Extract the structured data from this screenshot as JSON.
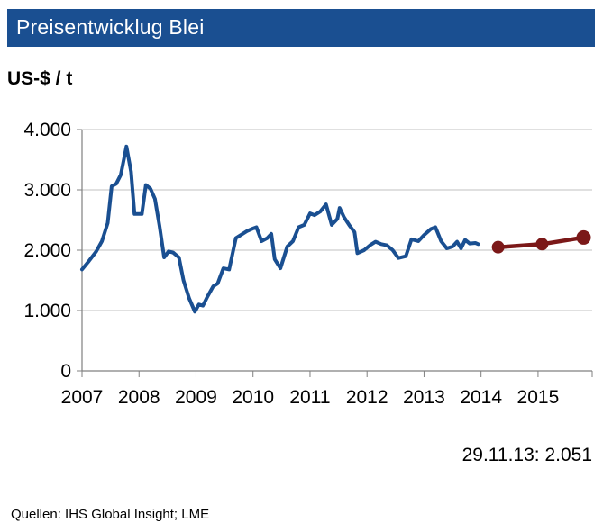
{
  "header": {
    "title": "Preisentwicklug Blei"
  },
  "unit_label": "US-$ / t",
  "current_value": "29.11.13: 2.051",
  "source": "Quellen:  IHS Global Insight; LME",
  "colors": {
    "title_bg": "#1a4f91",
    "history": "#1a4f91",
    "forecast": "#7b1818",
    "grid": "#c0c0c0"
  },
  "chart_data": {
    "type": "line",
    "title": "Preisentwicklug Blei",
    "ylabel": "US-$ / t",
    "xlabel": "",
    "xlim": [
      2007,
      2015.95
    ],
    "ylim": [
      0,
      4000
    ],
    "y_ticks": [
      0,
      1000,
      2000,
      3000,
      4000
    ],
    "y_tick_labels": [
      "0",
      "1.000",
      "2.000",
      "3.000",
      "4.000"
    ],
    "x_ticks": [
      2007,
      2008,
      2009,
      2010,
      2011,
      2012,
      2013,
      2014,
      2015
    ],
    "x_tick_labels": [
      "2007",
      "2008",
      "2009",
      "2010",
      "2011",
      "2012",
      "2013",
      "2014",
      "2015"
    ],
    "grid": true,
    "series": [
      {
        "type": "line",
        "color": "#1a4f91",
        "points": [
          [
            2007.0,
            1680
          ],
          [
            2007.12,
            1820
          ],
          [
            2007.25,
            1980
          ],
          [
            2007.35,
            2150
          ],
          [
            2007.45,
            2450
          ],
          [
            2007.52,
            3060
          ],
          [
            2007.6,
            3100
          ],
          [
            2007.68,
            3250
          ],
          [
            2007.78,
            3720
          ],
          [
            2007.86,
            3300
          ],
          [
            2007.92,
            2600
          ],
          [
            2008.05,
            2600
          ],
          [
            2008.12,
            3080
          ],
          [
            2008.2,
            3020
          ],
          [
            2008.28,
            2850
          ],
          [
            2008.36,
            2400
          ],
          [
            2008.44,
            1880
          ],
          [
            2008.52,
            1980
          ],
          [
            2008.6,
            1960
          ],
          [
            2008.7,
            1880
          ],
          [
            2008.78,
            1500
          ],
          [
            2008.88,
            1200
          ],
          [
            2008.98,
            980
          ],
          [
            2009.05,
            1100
          ],
          [
            2009.12,
            1080
          ],
          [
            2009.2,
            1230
          ],
          [
            2009.3,
            1400
          ],
          [
            2009.38,
            1450
          ],
          [
            2009.48,
            1700
          ],
          [
            2009.58,
            1680
          ],
          [
            2009.7,
            2200
          ],
          [
            2009.8,
            2260
          ],
          [
            2009.9,
            2320
          ],
          [
            2010.0,
            2360
          ],
          [
            2010.06,
            2380
          ],
          [
            2010.15,
            2150
          ],
          [
            2010.25,
            2200
          ],
          [
            2010.32,
            2270
          ],
          [
            2010.38,
            1850
          ],
          [
            2010.48,
            1700
          ],
          [
            2010.6,
            2060
          ],
          [
            2010.7,
            2150
          ],
          [
            2010.8,
            2380
          ],
          [
            2010.9,
            2420
          ],
          [
            2011.0,
            2610
          ],
          [
            2011.08,
            2580
          ],
          [
            2011.18,
            2640
          ],
          [
            2011.28,
            2760
          ],
          [
            2011.38,
            2420
          ],
          [
            2011.48,
            2520
          ],
          [
            2011.52,
            2700
          ],
          [
            2011.6,
            2540
          ],
          [
            2011.7,
            2400
          ],
          [
            2011.78,
            2300
          ],
          [
            2011.83,
            1950
          ],
          [
            2011.95,
            2000
          ],
          [
            2012.05,
            2080
          ],
          [
            2012.15,
            2140
          ],
          [
            2012.25,
            2100
          ],
          [
            2012.35,
            2080
          ],
          [
            2012.45,
            2000
          ],
          [
            2012.55,
            1870
          ],
          [
            2012.68,
            1900
          ],
          [
            2012.78,
            2180
          ],
          [
            2012.9,
            2150
          ],
          [
            2013.0,
            2250
          ],
          [
            2013.12,
            2350
          ],
          [
            2013.2,
            2380
          ],
          [
            2013.3,
            2150
          ],
          [
            2013.4,
            2030
          ],
          [
            2013.5,
            2060
          ],
          [
            2013.58,
            2140
          ],
          [
            2013.65,
            2030
          ],
          [
            2013.72,
            2170
          ],
          [
            2013.8,
            2110
          ],
          [
            2013.9,
            2120
          ],
          [
            2013.95,
            2100
          ]
        ]
      },
      {
        "type": "forecast",
        "color": "#7b1818",
        "points": [
          [
            2014.3,
            2050
          ],
          [
            2015.07,
            2100
          ],
          [
            2015.8,
            2210
          ]
        ]
      }
    ]
  }
}
